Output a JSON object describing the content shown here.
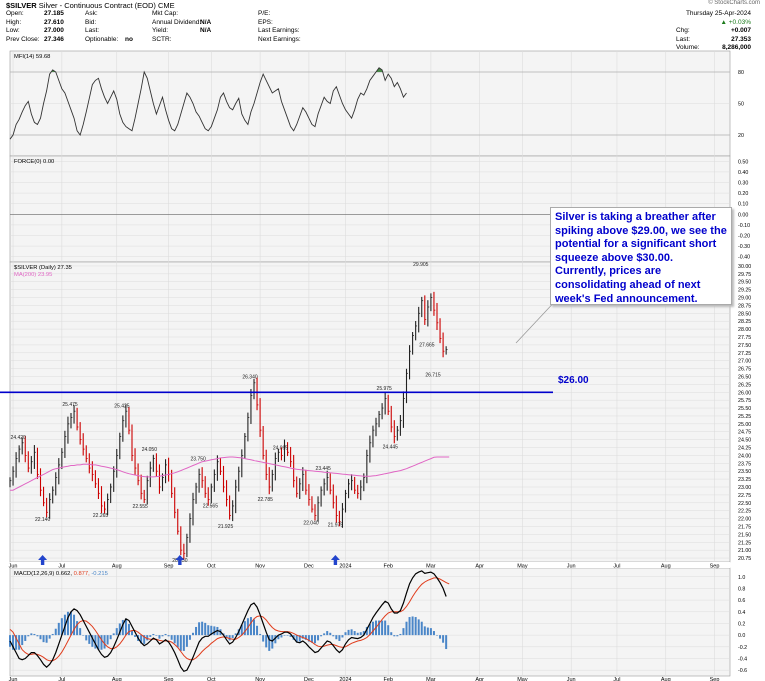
{
  "header": {
    "symbol": "$SILVER",
    "description": "Silver - Continuous Contract (EOD) CME",
    "watermark": "© StockCharts.com",
    "col1": [
      {
        "label": "Open:",
        "value": "27.185"
      },
      {
        "label": "High:",
        "value": "27.610"
      },
      {
        "label": "Low:",
        "value": "27.000"
      },
      {
        "label": "Prev Close:",
        "value": "27.346"
      }
    ],
    "col2": [
      {
        "label": "Ask:",
        "value": ""
      },
      {
        "label": "Bid:",
        "value": ""
      },
      {
        "label": "Last:",
        "value": ""
      },
      {
        "label": "Optionable:",
        "value": "no"
      }
    ],
    "col3": [
      {
        "label": "Mkt Cap:",
        "value": ""
      },
      {
        "label": "Annual Dividend:",
        "value": "N/A"
      },
      {
        "label": "Yield:",
        "value": "N/A"
      },
      {
        "label": "SCTR:",
        "value": ""
      }
    ],
    "col4": [
      {
        "label": "P/E:",
        "value": ""
      },
      {
        "label": "EPS:",
        "value": ""
      },
      {
        "label": "Last Earnings:",
        "value": ""
      },
      {
        "label": "Next Earnings:",
        "value": ""
      }
    ],
    "date": "Thursday  25-Apr-2024",
    "change_pct": "+0.03%",
    "chg_label": "Chg:",
    "chg_value": "+0.007",
    "last_label": "Last:",
    "last_value": "27.353",
    "volume_label": "Volume:",
    "volume_value": "8,286,000"
  },
  "callout": {
    "text": "Silver is taking a breather after spiking above $29.00, we see the potential for a significant short squeeze above $30.00. Currently, prices are consolidating ahead of next week's Fed announcement."
  },
  "chart_data": [
    {
      "type": "line",
      "panel": "mfi",
      "legend": "MFI(14) 59.68",
      "ylim": [
        0,
        100
      ],
      "yticks": [
        20,
        50,
        80
      ],
      "reference_lines": [
        20,
        80
      ],
      "values": [
        16,
        20,
        30,
        35,
        42,
        48,
        52,
        40,
        32,
        30,
        36,
        50,
        62,
        78,
        82,
        80,
        72,
        64,
        60,
        52,
        44,
        36,
        24,
        20,
        30,
        42,
        55,
        68,
        72,
        74,
        64,
        56,
        50,
        56,
        62,
        54,
        40,
        32,
        28,
        26,
        24,
        36,
        50,
        64,
        80,
        74,
        62,
        50,
        40,
        48,
        56,
        44,
        34,
        26,
        24,
        30,
        40,
        50,
        60,
        56,
        50,
        42,
        38,
        32,
        26,
        24,
        28,
        36,
        44,
        56,
        60,
        52,
        46,
        44,
        50,
        55,
        40,
        34,
        30,
        42,
        50,
        60,
        70,
        78,
        72,
        66,
        60,
        62,
        64,
        52,
        44,
        36,
        28,
        24,
        30,
        38,
        46,
        42,
        36,
        30,
        28,
        40,
        48,
        56,
        52,
        50,
        62,
        66,
        58,
        50,
        44,
        40,
        36,
        44,
        54,
        60,
        58,
        64,
        72,
        76,
        80,
        84,
        82,
        72,
        78,
        74,
        66,
        70,
        64,
        56,
        60
      ]
    },
    {
      "type": "line",
      "panel": "force",
      "legend": "FORCE(0) 0.00",
      "ylim": [
        -0.45,
        0.55
      ],
      "yticks": [
        0.5,
        0.4,
        0.3,
        0.2,
        0.1,
        0.0,
        -0.1,
        -0.2,
        -0.3,
        -0.4
      ],
      "values": [
        0
      ]
    },
    {
      "type": "bar",
      "panel": "price",
      "legend": "$SILVER (Daily) 27.35",
      "ma_legend": "MA(200) 23.95",
      "ylim": [
        20.625,
        30.125
      ],
      "yticks": [
        20.75,
        21.0,
        21.25,
        21.5,
        21.75,
        22.0,
        22.25,
        22.5,
        22.75,
        23.0,
        23.25,
        23.5,
        23.75,
        24.0,
        24.25,
        24.5,
        24.75,
        25.0,
        25.25,
        25.5,
        25.75,
        26.0,
        26.25,
        26.5,
        26.75,
        27.0,
        27.25,
        27.5,
        27.75,
        28.0,
        28.25,
        28.5,
        28.75,
        29.0,
        29.25,
        29.5,
        29.75,
        30.0
      ],
      "horizontal_line": {
        "value": 26.0,
        "label": "$26.00"
      },
      "closes": [
        23.2,
        23.5,
        23.9,
        24.2,
        24.4,
        24.0,
        23.6,
        23.8,
        24.1,
        23.4,
        22.9,
        22.5,
        22.2,
        22.6,
        22.9,
        23.3,
        23.7,
        24.1,
        24.6,
        25.0,
        25.2,
        25.4,
        24.9,
        24.5,
        24.2,
        23.9,
        23.6,
        23.4,
        23.1,
        22.8,
        22.4,
        22.3,
        22.6,
        23.0,
        23.5,
        24.0,
        24.6,
        25.1,
        25.4,
        24.8,
        24.0,
        23.6,
        23.2,
        22.8,
        22.6,
        23.2,
        23.6,
        23.9,
        23.5,
        23.0,
        23.3,
        23.7,
        23.4,
        22.8,
        22.2,
        21.6,
        21.0,
        20.9,
        21.4,
        22.0,
        22.6,
        23.0,
        23.4,
        23.2,
        22.8,
        22.6,
        23.0,
        23.4,
        23.8,
        23.5,
        23.0,
        22.6,
        22.1,
        22.4,
        23.0,
        23.5,
        24.0,
        24.6,
        25.2,
        25.9,
        26.3,
        25.6,
        24.8,
        24.0,
        23.4,
        23.0,
        23.4,
        23.9,
        24.1,
        24.0,
        24.3,
        24.1,
        23.8,
        23.2,
        22.8,
        23.1,
        23.4,
        22.9,
        22.6,
        22.3,
        22.1,
        22.5,
        22.9,
        23.1,
        23.3,
        22.9,
        22.5,
        22.1,
        21.9,
        22.3,
        22.8,
        23.1,
        23.2,
        22.9,
        22.8,
        23.0,
        23.3,
        24.0,
        24.4,
        24.8,
        25.0,
        25.3,
        25.5,
        25.8,
        25.4,
        24.9,
        24.6,
        24.8,
        25.1,
        25.8,
        26.6,
        27.3,
        27.8,
        28.1,
        28.5,
        28.9,
        28.3,
        28.7,
        29.0,
        28.6,
        28.2,
        27.7,
        27.3,
        27.35
      ],
      "ma200": [
        22.9,
        22.9,
        22.95,
        23.0,
        23.05,
        23.1,
        23.15,
        23.2,
        23.25,
        23.3,
        23.35,
        23.4,
        23.45,
        23.5,
        23.55,
        23.58,
        23.6,
        23.62,
        23.64,
        23.66,
        23.68,
        23.68,
        23.7,
        23.7,
        23.72,
        23.72,
        23.72,
        23.7,
        23.7,
        23.68,
        23.66,
        23.64,
        23.62,
        23.6,
        23.58,
        23.55,
        23.52,
        23.48,
        23.45,
        23.42,
        23.4,
        23.38,
        23.36,
        23.34,
        23.33,
        23.32,
        23.32,
        23.32,
        23.33,
        23.34,
        23.36,
        23.38,
        23.4,
        23.42,
        23.45,
        23.48,
        23.52,
        23.56,
        23.6,
        23.64,
        23.68,
        23.72,
        23.76,
        23.8,
        23.82,
        23.84,
        23.86,
        23.88,
        23.9,
        23.92,
        23.93,
        23.94,
        23.95,
        23.95,
        23.94,
        23.93,
        23.92,
        23.9,
        23.88,
        23.86,
        23.84,
        23.82,
        23.8,
        23.78,
        23.76,
        23.74,
        23.72,
        23.7,
        23.68,
        23.66,
        23.64,
        23.62,
        23.6,
        23.58,
        23.56,
        23.55,
        23.54,
        23.53,
        23.52,
        23.51,
        23.5,
        23.49,
        23.48,
        23.47,
        23.46,
        23.45,
        23.44,
        23.43,
        23.42,
        23.41,
        23.4,
        23.39,
        23.38,
        23.37,
        23.36,
        23.35,
        23.34,
        23.34,
        23.34,
        23.35,
        23.36,
        23.38,
        23.4,
        23.42,
        23.44,
        23.46,
        23.48,
        23.5,
        23.52,
        23.55,
        23.58,
        23.62,
        23.66,
        23.7,
        23.74,
        23.78,
        23.82,
        23.86,
        23.9,
        23.94,
        23.95,
        23.95,
        23.95,
        23.95,
        23.95
      ],
      "annotations": [
        {
          "label": "24.420",
          "index": 4,
          "value": 24.42,
          "pos": "above"
        },
        {
          "label": "22.140",
          "index": 12,
          "value": 22.14,
          "pos": "below"
        },
        {
          "label": "25.475",
          "index": 21,
          "value": 25.475,
          "pos": "above"
        },
        {
          "label": "22.265",
          "index": 31,
          "value": 22.265,
          "pos": "below"
        },
        {
          "label": "25.425",
          "index": 38,
          "value": 25.425,
          "pos": "above"
        },
        {
          "label": "22.555",
          "index": 44,
          "value": 22.555,
          "pos": "below"
        },
        {
          "label": "24.050",
          "index": 47,
          "value": 24.05,
          "pos": "above"
        },
        {
          "label": "20.850",
          "index": 57,
          "value": 20.85,
          "pos": "below"
        },
        {
          "label": "23.750",
          "index": 63,
          "value": 23.75,
          "pos": "above"
        },
        {
          "label": "22.565",
          "index": 67,
          "value": 22.565,
          "pos": "below"
        },
        {
          "label": "21.925",
          "index": 72,
          "value": 21.925,
          "pos": "below"
        },
        {
          "label": "26.340",
          "index": 80,
          "value": 26.34,
          "pos": "above"
        },
        {
          "label": "22.785",
          "index": 85,
          "value": 22.785,
          "pos": "below"
        },
        {
          "label": "24.095",
          "index": 90,
          "value": 24.095,
          "pos": "above"
        },
        {
          "label": "22.040",
          "index": 100,
          "value": 22.04,
          "pos": "below"
        },
        {
          "label": "23.445",
          "index": 104,
          "value": 23.445,
          "pos": "above"
        },
        {
          "label": "21.975",
          "index": 108,
          "value": 21.975,
          "pos": "below"
        },
        {
          "label": "25.975",
          "index": 124,
          "value": 25.975,
          "pos": "above"
        },
        {
          "label": "24.445",
          "index": 126,
          "value": 24.445,
          "pos": "below"
        },
        {
          "label": "29.905",
          "index": 136,
          "value": 29.905,
          "pos": "above"
        },
        {
          "label": "27.665",
          "index": 138,
          "value": 27.665,
          "pos": "below"
        },
        {
          "label": "26.715",
          "index": 140,
          "value": 26.715,
          "pos": "below"
        }
      ],
      "marker_arrows": [
        12,
        57,
        108
      ]
    },
    {
      "type": "line",
      "panel": "macd",
      "legend": "MACD(12,26,9)",
      "legend_macd": "0.662,",
      "legend_signal": "0.877,",
      "legend_hist": "-0.215",
      "ylim": [
        -0.7,
        1.15
      ],
      "yticks": [
        1.0,
        0.8,
        0.6,
        0.4,
        0.2,
        0.0,
        -0.2,
        -0.4,
        -0.6
      ],
      "macd": [
        -0.1,
        -0.2,
        -0.3,
        -0.4,
        -0.42,
        -0.4,
        -0.35,
        -0.3,
        -0.3,
        -0.35,
        -0.42,
        -0.5,
        -0.55,
        -0.5,
        -0.42,
        -0.3,
        -0.15,
        0.0,
        0.15,
        0.3,
        0.4,
        0.45,
        0.42,
        0.35,
        0.25,
        0.15,
        0.05,
        -0.05,
        -0.15,
        -0.25,
        -0.33,
        -0.38,
        -0.36,
        -0.3,
        -0.2,
        -0.08,
        0.05,
        0.18,
        0.28,
        0.25,
        0.15,
        0.05,
        -0.05,
        -0.13,
        -0.18,
        -0.15,
        -0.1,
        -0.05,
        -0.08,
        -0.15,
        -0.12,
        -0.08,
        -0.12,
        -0.2,
        -0.3,
        -0.42,
        -0.55,
        -0.62,
        -0.6,
        -0.5,
        -0.38,
        -0.25,
        -0.12,
        -0.05,
        -0.02,
        -0.02,
        0.02,
        0.05,
        0.08,
        0.06,
        0.0,
        -0.08,
        -0.15,
        -0.12,
        -0.04,
        0.06,
        0.18,
        0.3,
        0.42,
        0.52,
        0.55,
        0.48,
        0.35,
        0.2,
        0.05,
        -0.08,
        -0.1,
        -0.05,
        0.0,
        0.02,
        0.05,
        0.05,
        0.02,
        -0.05,
        -0.12,
        -0.13,
        -0.1,
        -0.14,
        -0.2,
        -0.25,
        -0.3,
        -0.28,
        -0.22,
        -0.16,
        -0.1,
        -0.12,
        -0.18,
        -0.25,
        -0.3,
        -0.25,
        -0.15,
        -0.08,
        -0.04,
        -0.05,
        -0.06,
        -0.04,
        0.0,
        0.1,
        0.2,
        0.3,
        0.38,
        0.45,
        0.52,
        0.58,
        0.55,
        0.45,
        0.38,
        0.38,
        0.42,
        0.55,
        0.72,
        0.88,
        0.98,
        1.05,
        1.08,
        1.1,
        1.06,
        1.07,
        1.08,
        1.05,
        0.98,
        0.9,
        0.8,
        0.662
      ],
      "signal": [
        0.1,
        0.05,
        -0.05,
        -0.15,
        -0.25,
        -0.3,
        -0.33,
        -0.33,
        -0.32,
        -0.33,
        -0.35,
        -0.38,
        -0.42,
        -0.44,
        -0.44,
        -0.41,
        -0.36,
        -0.29,
        -0.2,
        -0.1,
        0.0,
        0.1,
        0.18,
        0.23,
        0.25,
        0.24,
        0.2,
        0.15,
        0.08,
        0.0,
        -0.08,
        -0.15,
        -0.2,
        -0.23,
        -0.23,
        -0.2,
        -0.15,
        -0.08,
        0.0,
        0.06,
        0.08,
        0.08,
        0.05,
        0.01,
        -0.03,
        -0.06,
        -0.07,
        -0.07,
        -0.07,
        -0.09,
        -0.1,
        -0.1,
        -0.1,
        -0.12,
        -0.16,
        -0.21,
        -0.28,
        -0.35,
        -0.4,
        -0.42,
        -0.42,
        -0.39,
        -0.34,
        -0.28,
        -0.23,
        -0.19,
        -0.14,
        -0.1,
        -0.06,
        -0.04,
        -0.03,
        -0.04,
        -0.06,
        -0.07,
        -0.07,
        -0.04,
        0.0,
        0.06,
        0.13,
        0.21,
        0.28,
        0.32,
        0.33,
        0.31,
        0.26,
        0.19,
        0.13,
        0.09,
        0.07,
        0.06,
        0.06,
        0.06,
        0.05,
        0.03,
        0.0,
        -0.02,
        -0.04,
        -0.06,
        -0.09,
        -0.12,
        -0.16,
        -0.19,
        -0.2,
        -0.19,
        -0.17,
        -0.16,
        -0.16,
        -0.18,
        -0.2,
        -0.21,
        -0.2,
        -0.17,
        -0.14,
        -0.12,
        -0.1,
        -0.09,
        -0.07,
        -0.04,
        0.01,
        0.07,
        0.13,
        0.2,
        0.27,
        0.33,
        0.38,
        0.4,
        0.4,
        0.4,
        0.4,
        0.43,
        0.49,
        0.57,
        0.66,
        0.74,
        0.81,
        0.87,
        0.91,
        0.94,
        0.96,
        0.98,
        0.98,
        0.96,
        0.93,
        0.9,
        0.877
      ]
    }
  ],
  "x_axis": {
    "months": [
      {
        "label": "Jun",
        "index": 1
      },
      {
        "label": "Jul",
        "index": 17
      },
      {
        "label": "Aug",
        "index": 35
      },
      {
        "label": "Sep",
        "index": 52
      },
      {
        "label": "Oct",
        "index": 66
      },
      {
        "label": "Nov",
        "index": 82
      },
      {
        "label": "Dec",
        "index": 98
      },
      {
        "label": "2024",
        "index": 110
      },
      {
        "label": "Feb",
        "index": 124
      },
      {
        "label": "Mar",
        "index": 138
      },
      {
        "label": "Apr",
        "index": 154
      },
      {
        "label": "May",
        "index": 168
      },
      {
        "label": "Jun",
        "index": 184
      },
      {
        "label": "Jul",
        "index": 199
      },
      {
        "label": "Aug",
        "index": 215
      },
      {
        "label": "Sep",
        "index": 231
      }
    ]
  },
  "colors": {
    "up": "#222222",
    "down": "#cc0000",
    "ma": "#e066c4",
    "level": "#0000cc",
    "macd": "#000000",
    "signal": "#e03c1c",
    "hist": "#4a86c8",
    "mfi_fill": "#4a8a4a"
  }
}
